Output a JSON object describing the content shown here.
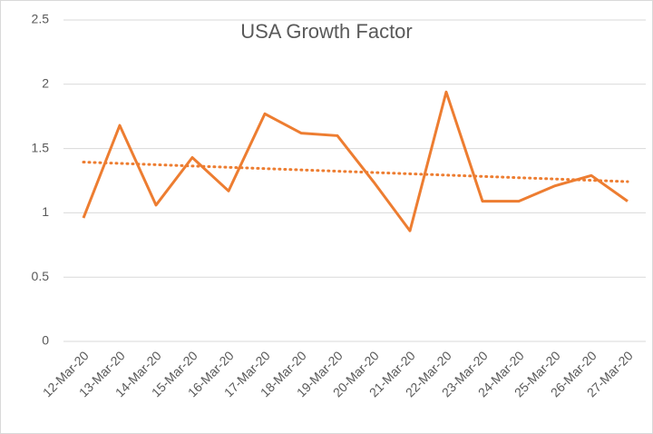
{
  "chart_data": {
    "type": "line",
    "title": "USA Growth Factor",
    "categories": [
      "12-Mar-20",
      "13-Mar-20",
      "14-Mar-20",
      "15-Mar-20",
      "16-Mar-20",
      "17-Mar-20",
      "18-Mar-20",
      "19-Mar-20",
      "20-Mar-20",
      "21-Mar-20",
      "22-Mar-20",
      "23-Mar-20",
      "24-Mar-20",
      "25-Mar-20",
      "26-Mar-20",
      "27-Mar-20"
    ],
    "values": [
      0.96,
      1.68,
      1.06,
      1.43,
      1.17,
      1.77,
      1.62,
      1.6,
      1.24,
      0.86,
      1.94,
      1.09,
      1.09,
      1.21,
      1.29,
      1.09
    ],
    "color": "#ed7d31",
    "trendline": "linear",
    "ylim": [
      0,
      2.5
    ],
    "yticks": [
      0,
      0.5,
      1,
      1.5,
      2,
      2.5
    ],
    "grid": true
  }
}
